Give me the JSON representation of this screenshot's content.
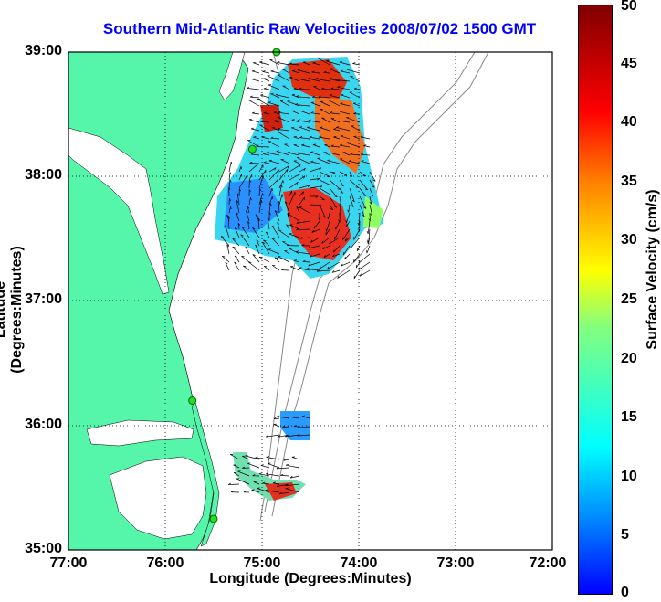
{
  "title": "Southern Mid-Atlantic Raw Velocities 2008/07/02 1500 GMT",
  "xlabel": "Longitude (Degrees:Minutes)",
  "ylabel": "Latitude (Degrees:Minutes)",
  "colorbar": {
    "label": "Surface Velocity (cm/s)",
    "ticks": [
      "0",
      "5",
      "10",
      "15",
      "20",
      "25",
      "30",
      "35",
      "40",
      "45",
      "50"
    ],
    "range": [
      0,
      50
    ]
  },
  "x_ticks": [
    "77:00",
    "76:00",
    "75:00",
    "74:00",
    "73:00",
    "72:00"
  ],
  "y_ticks": [
    "39:00",
    "38:00",
    "37:00",
    "36:00",
    "35:00"
  ],
  "chart_data": {
    "type": "heatmap",
    "xlim": [
      -77,
      -72
    ],
    "ylim": [
      35,
      39
    ],
    "grid": true,
    "land_color": "#55f5aa",
    "colormap": "jet",
    "stations": [
      [
        -74.85,
        39.0
      ],
      [
        -75.1,
        38.22
      ],
      [
        -75.72,
        36.2
      ],
      [
        -75.5,
        35.25
      ]
    ]
  }
}
